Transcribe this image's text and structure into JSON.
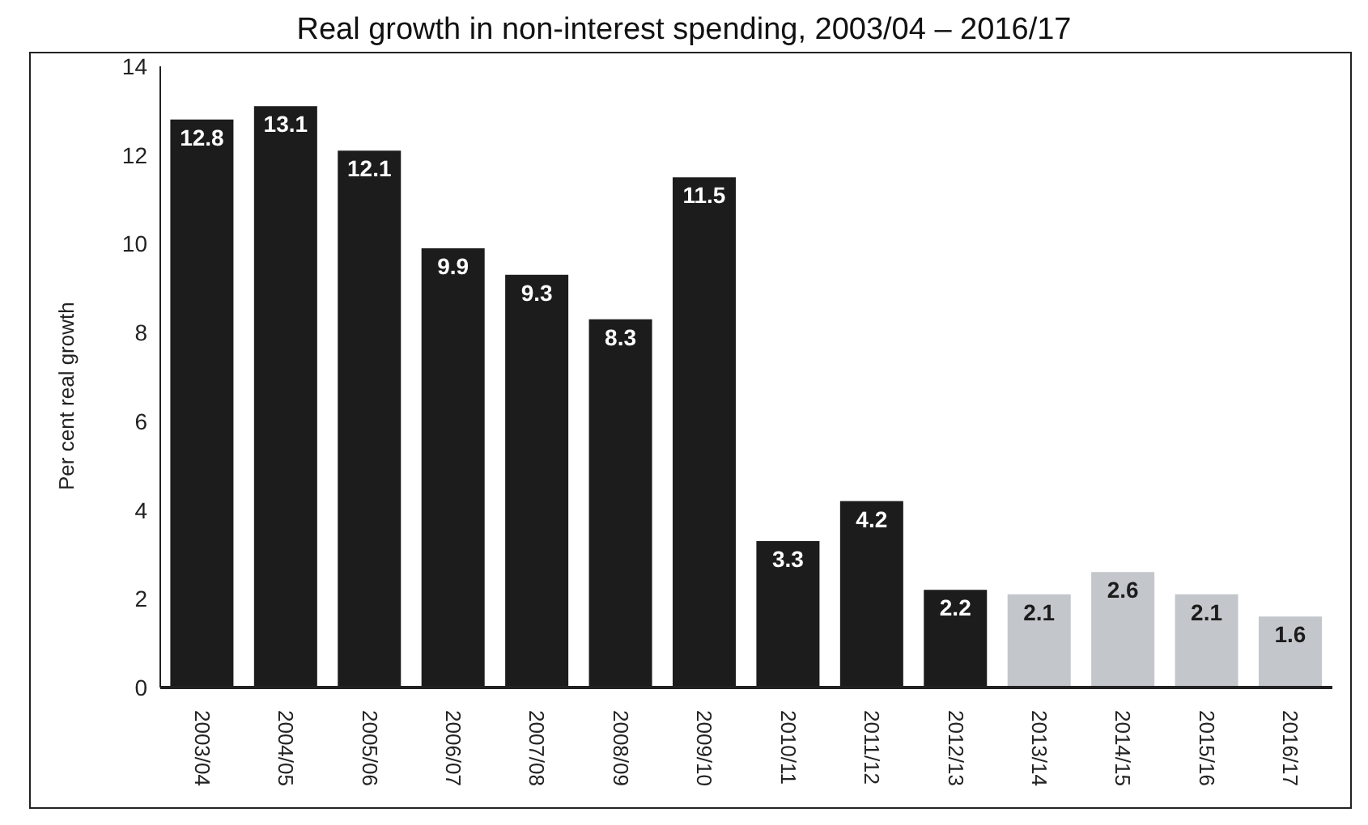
{
  "chart_data": {
    "type": "bar",
    "title": "Real growth in non-interest spending, 2003/04 – 2016/17",
    "ylabel": "Per cent real growth",
    "categories": [
      "2003/04",
      "2004/05",
      "2005/06",
      "2006/07",
      "2007/08",
      "2008/09",
      "2009/10",
      "2010/11",
      "2011/12",
      "2012/13",
      "2013/14",
      "2014/15",
      "2015/16",
      "2016/17"
    ],
    "values": [
      12.8,
      13.1,
      12.1,
      9.9,
      9.3,
      8.3,
      11.5,
      3.3,
      4.2,
      2.2,
      2.1,
      2.6,
      2.1,
      1.6
    ],
    "colors": [
      "#1c1c1c",
      "#1c1c1c",
      "#1c1c1c",
      "#1c1c1c",
      "#1c1c1c",
      "#1c1c1c",
      "#1c1c1c",
      "#1c1c1c",
      "#1c1c1c",
      "#1c1c1c",
      "#c3c7cb",
      "#c3c7cb",
      "#c3c7cb",
      "#c3c7cb"
    ],
    "ylim": [
      0,
      14
    ],
    "yticks": [
      0,
      2,
      4,
      6,
      8,
      10,
      12,
      14
    ],
    "grid": false,
    "data_labels": true
  }
}
